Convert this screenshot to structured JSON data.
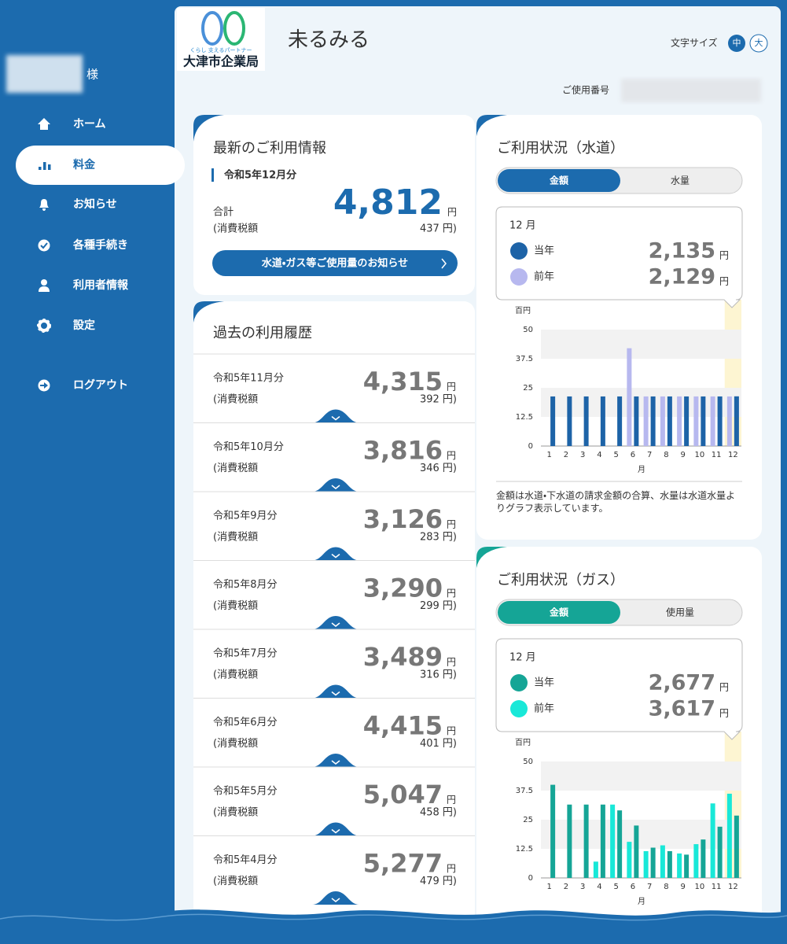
{
  "sidebar": {
    "user_suffix": "様",
    "nav": [
      "ホーム",
      "料金",
      "お知らせ",
      "各種手続き",
      "利用者情報",
      "設定"
    ],
    "logout": "ログアウト"
  },
  "header": {
    "logo_tagline": "くらし 支えるパートナー",
    "logo_org": "大津市企業局",
    "app_title": "未るみる",
    "font_size_label": "文字サイズ",
    "font_sizes": [
      "中",
      "大"
    ],
    "customer_number_label": "ご使用番号"
  },
  "common": {
    "yen": "円",
    "tax_label": "(消費税額"
  },
  "latest": {
    "title": "最新のご利用情報",
    "month": "令和5年12月分",
    "total_label": "合計",
    "amount": "4,812",
    "tax": "437 円)",
    "button": "水道・ガス等ご使用量のお知らせ"
  },
  "history": {
    "title": "過去の利用履歴",
    "items": [
      {
        "month": "令和5年11月分",
        "amount": "4,315",
        "tax": "392 円)"
      },
      {
        "month": "令和5年10月分",
        "amount": "3,816",
        "tax": "346 円)"
      },
      {
        "month": "令和5年9月分",
        "amount": "3,126",
        "tax": "283 円)"
      },
      {
        "month": "令和5年8月分",
        "amount": "3,290",
        "tax": "299 円)"
      },
      {
        "month": "令和5年7月分",
        "amount": "3,489",
        "tax": "316 円)"
      },
      {
        "month": "令和5年6月分",
        "amount": "4,415",
        "tax": "401 円)"
      },
      {
        "month": "令和5年5月分",
        "amount": "5,047",
        "tax": "458 円)"
      },
      {
        "month": "令和5年4月分",
        "amount": "5,277",
        "tax": "479 円)"
      }
    ]
  },
  "usage_panels": [
    {
      "title": "ご利用状況（水道）",
      "tabs": [
        "金額",
        "水量"
      ],
      "tooltip_month": "12 月",
      "current_total": "2,135",
      "previous_total": "2,129",
      "note": "金額は水道・下水道の請求金額の合算、水量は水道水量よりグラフ表示しています。"
    },
    {
      "title": "ご利用状況（ガス）",
      "tabs": [
        "金額",
        "使用量"
      ],
      "tooltip_month": "12 月",
      "current_total": "2,677",
      "previous_total": "3,617"
    }
  ],
  "chart_data": [
    {
      "type": "bar",
      "y_label": "百円",
      "x_label": "月",
      "categories": [
        "1",
        "2",
        "3",
        "4",
        "5",
        "6",
        "7",
        "8",
        "9",
        "10",
        "11",
        "12"
      ],
      "ylim": [
        0,
        50
      ],
      "yticks": [
        0,
        12.5,
        25,
        37.5,
        50
      ],
      "grid": true,
      "series": [
        {
          "name": "前年",
          "color": "#b7b8ef",
          "values": [
            null,
            null,
            null,
            null,
            null,
            42,
            21.3,
            21.3,
            21.3,
            21.3,
            21.3,
            21.29
          ]
        },
        {
          "name": "当年",
          "color": "#1d63a7",
          "values": [
            21.3,
            21.3,
            21.3,
            21.3,
            21.3,
            21.3,
            21.3,
            21.3,
            21.3,
            21.3,
            21.3,
            21.35
          ]
        }
      ]
    },
    {
      "type": "bar",
      "y_label": "百円",
      "x_label": "月",
      "categories": [
        "1",
        "2",
        "3",
        "4",
        "5",
        "6",
        "7",
        "8",
        "9",
        "10",
        "11",
        "12"
      ],
      "ylim": [
        0,
        50
      ],
      "yticks": [
        0,
        12.5,
        25,
        37.5,
        50
      ],
      "grid": true,
      "series": [
        {
          "name": "前年",
          "color": "#19e8d8",
          "values": [
            null,
            null,
            null,
            7,
            31.5,
            15.5,
            11.5,
            14,
            10.5,
            14.5,
            32,
            36.17
          ]
        },
        {
          "name": "当年",
          "color": "#15a596",
          "values": [
            40,
            31.5,
            31.5,
            31.5,
            29,
            22.5,
            13,
            11.5,
            10,
            16.5,
            22,
            26.77
          ]
        }
      ]
    }
  ]
}
